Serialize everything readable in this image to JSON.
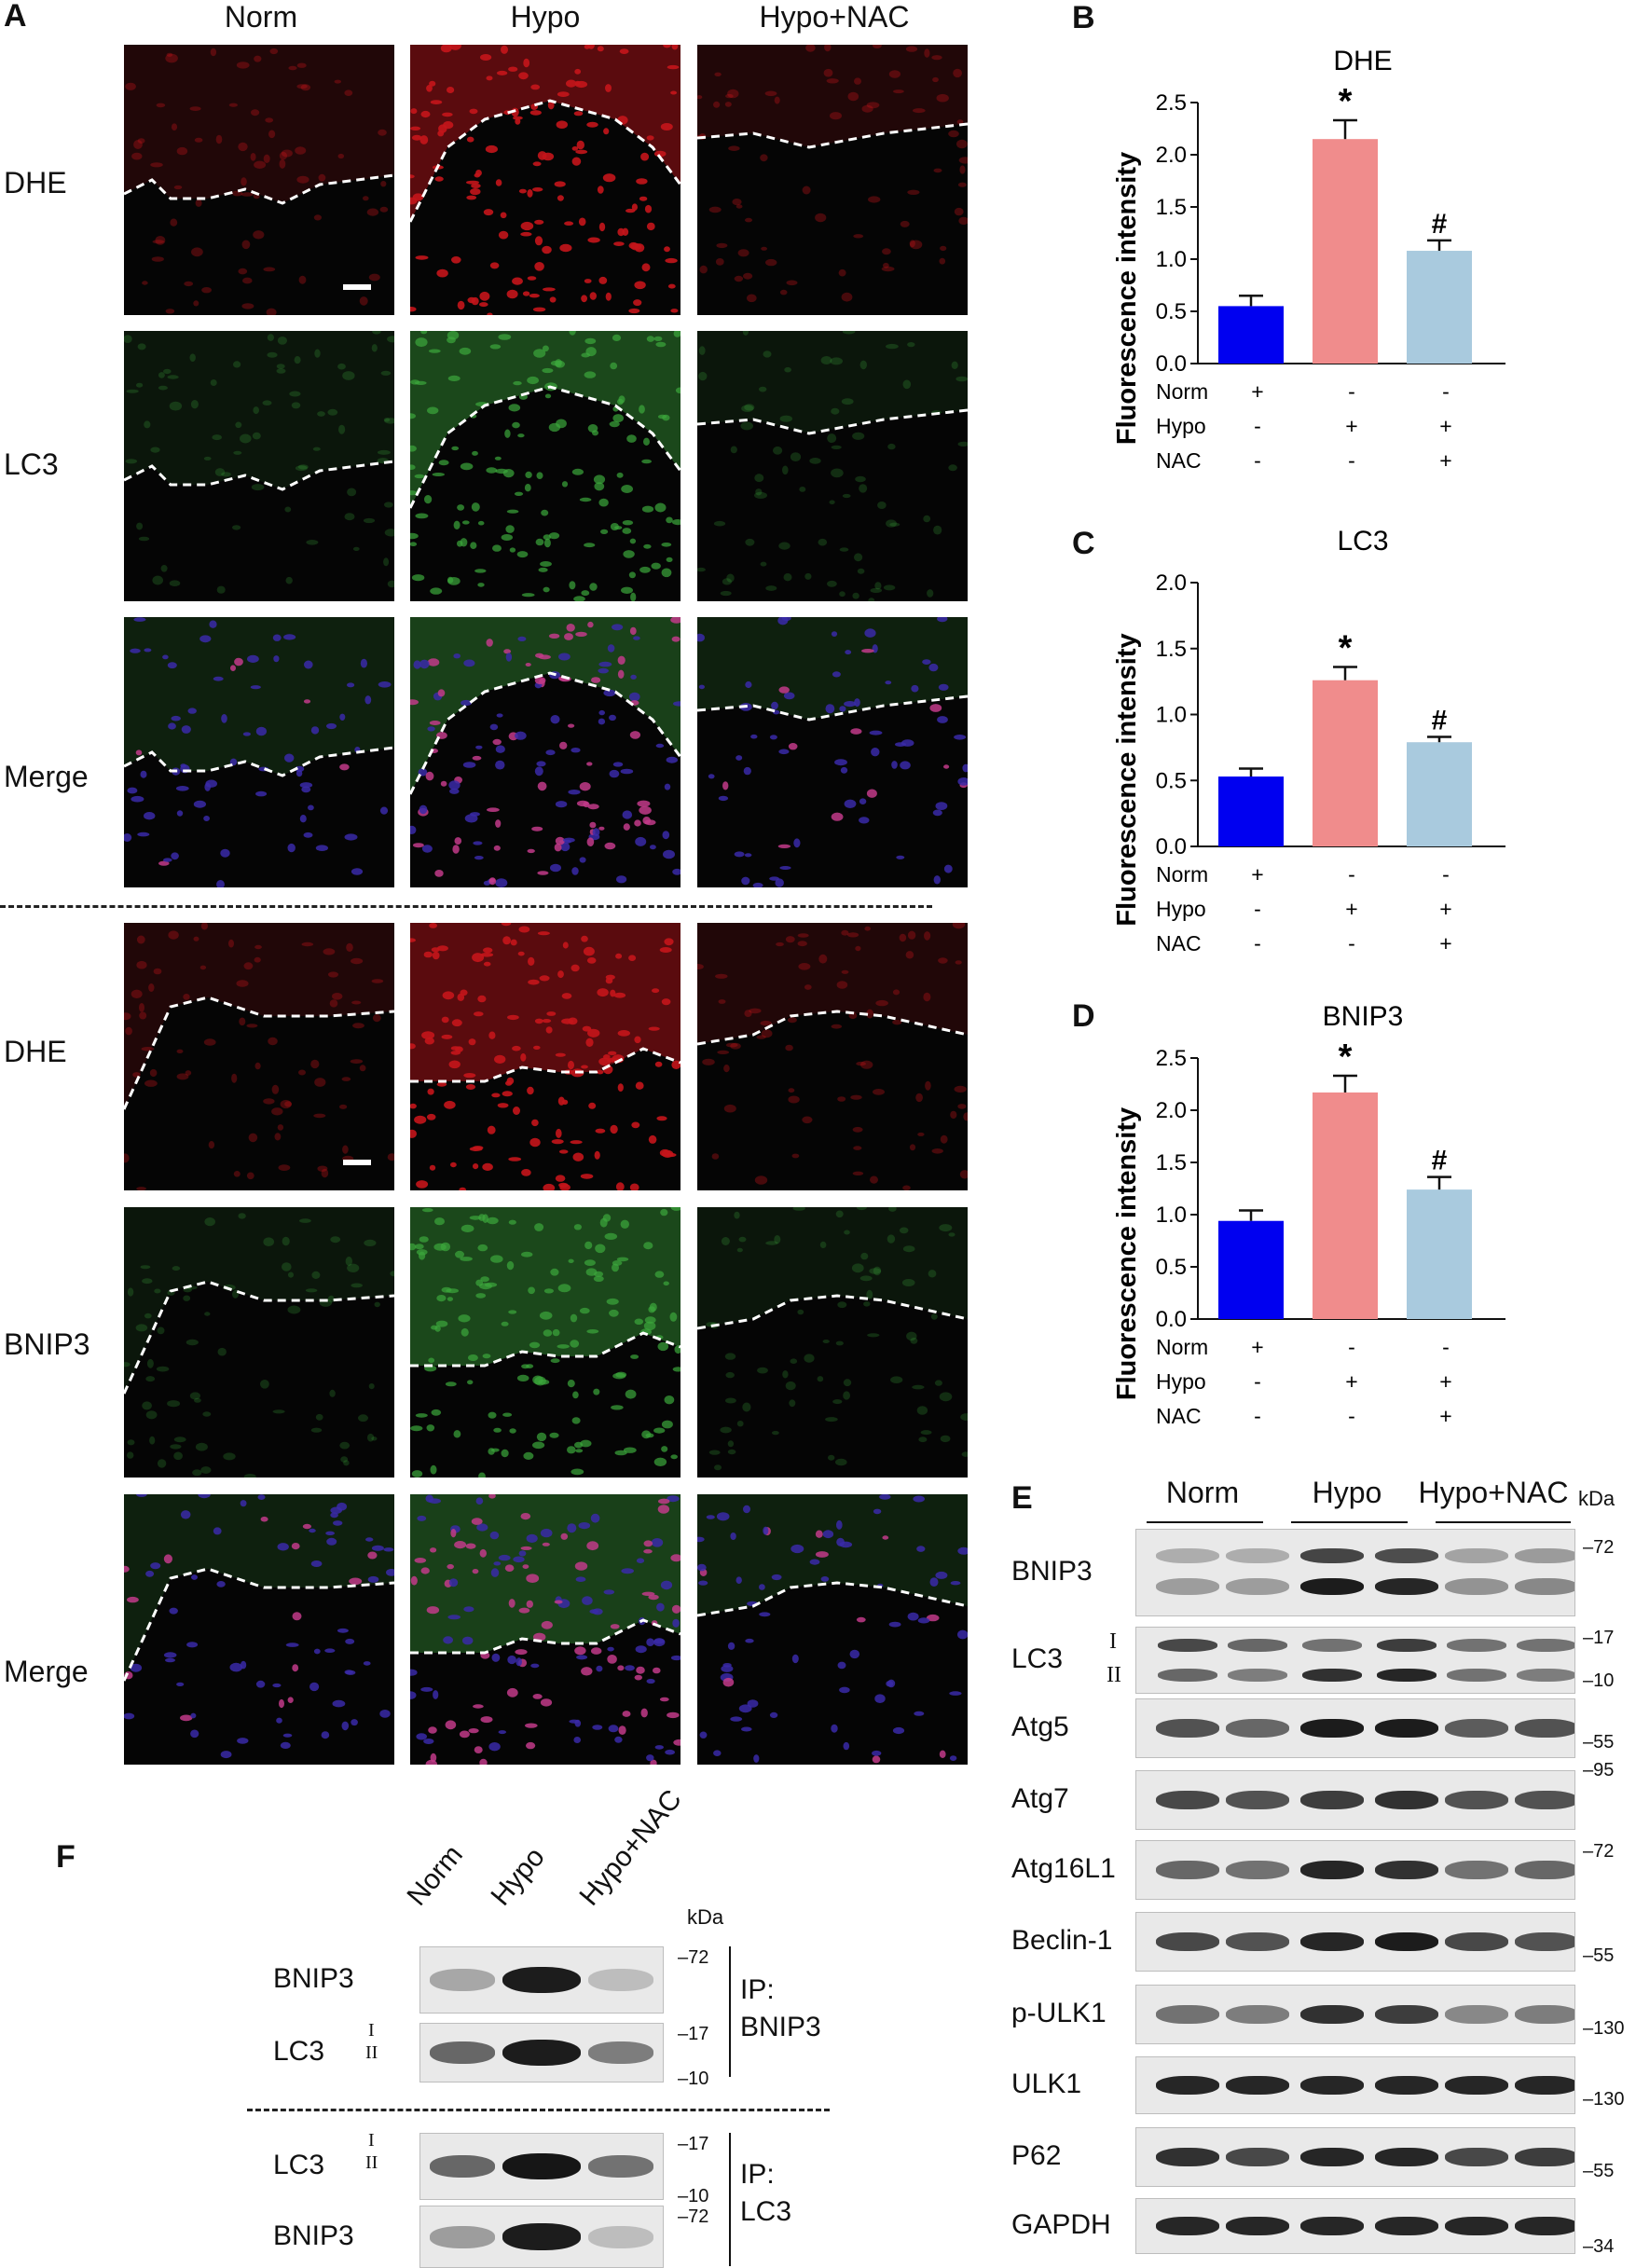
{
  "panel_letters": {
    "A": "A",
    "B": "B",
    "C": "C",
    "D": "D",
    "E": "E",
    "F": "F"
  },
  "panel_a": {
    "columns": [
      "Norm",
      "Hypo",
      "Hypo+NAC"
    ],
    "top_rows": [
      "DHE",
      "LC3",
      "Merge"
    ],
    "bottom_rows": [
      "DHE",
      "BNIP3",
      "Merge"
    ],
    "colors": {
      "dhe": "#c4151b",
      "green": "#3ca83c",
      "nucleus": "#3a2aa8",
      "background": "#050505"
    }
  },
  "chart_data": [
    {
      "type": "bar",
      "title": "DHE",
      "ylabel": "Fluorescence intensity",
      "ylim": [
        0,
        2.5
      ],
      "yticks": [
        "0.0",
        "0.5",
        "1.0",
        "1.5",
        "2.0",
        "2.5"
      ],
      "values": [
        0.55,
        2.15,
        1.08
      ],
      "errors": [
        0.1,
        0.18,
        0.1
      ],
      "colors": [
        "#0000f0",
        "#f08c8c",
        "#a9cade"
      ],
      "markers": [
        "",
        "*",
        "#"
      ],
      "conditions": [
        {
          "name": "Norm",
          "signs": [
            "+",
            "-",
            "-"
          ]
        },
        {
          "name": "Hypo",
          "signs": [
            "-",
            "+",
            "+"
          ]
        },
        {
          "name": "NAC",
          "signs": [
            "-",
            "-",
            "+"
          ]
        }
      ]
    },
    {
      "type": "bar",
      "title": "LC3",
      "ylabel": "Fluorescence intensity",
      "ylim": [
        0,
        2.0
      ],
      "yticks": [
        "0.0",
        "0.5",
        "1.0",
        "1.5",
        "2.0"
      ],
      "values": [
        0.53,
        1.26,
        0.79
      ],
      "errors": [
        0.06,
        0.1,
        0.04
      ],
      "colors": [
        "#0000f0",
        "#f08c8c",
        "#a9cade"
      ],
      "markers": [
        "",
        "*",
        "#"
      ],
      "conditions": [
        {
          "name": "Norm",
          "signs": [
            "+",
            "-",
            "-"
          ]
        },
        {
          "name": "Hypo",
          "signs": [
            "-",
            "+",
            "+"
          ]
        },
        {
          "name": "NAC",
          "signs": [
            "-",
            "-",
            "+"
          ]
        }
      ]
    },
    {
      "type": "bar",
      "title": "BNIP3",
      "ylabel": "Fluorescence intensity",
      "ylim": [
        0,
        2.5
      ],
      "yticks": [
        "0.0",
        "0.5",
        "1.0",
        "1.5",
        "2.0",
        "2.5"
      ],
      "values": [
        0.94,
        2.17,
        1.24
      ],
      "errors": [
        0.1,
        0.16,
        0.12
      ],
      "colors": [
        "#0000f0",
        "#f08c8c",
        "#a9cade"
      ],
      "markers": [
        "",
        "*",
        "#"
      ],
      "conditions": [
        {
          "name": "Norm",
          "signs": [
            "+",
            "-",
            "-"
          ]
        },
        {
          "name": "Hypo",
          "signs": [
            "-",
            "+",
            "+"
          ]
        },
        {
          "name": "NAC",
          "signs": [
            "-",
            "-",
            "+"
          ]
        }
      ]
    }
  ],
  "panel_e": {
    "groups": [
      "Norm",
      "Hypo",
      "Hypo+NAC"
    ],
    "kda": "kDa",
    "rows": [
      {
        "label": "BNIP3",
        "markers": [
          "72"
        ]
      },
      {
        "label": "LC3",
        "roman": [
          "I",
          "II"
        ],
        "markers": [
          "17",
          "10"
        ]
      },
      {
        "label": "Atg5",
        "markers": [
          "55"
        ]
      },
      {
        "label": "Atg7",
        "markers": [
          "95"
        ]
      },
      {
        "label": "Atg16L1",
        "markers": [
          "72"
        ]
      },
      {
        "label": "Beclin-1",
        "markers": [
          "55"
        ]
      },
      {
        "label": "p-ULK1",
        "markers": [
          "130"
        ]
      },
      {
        "label": "ULK1",
        "markers": [
          "130"
        ]
      },
      {
        "label": "P62",
        "markers": [
          "55"
        ]
      },
      {
        "label": "GAPDH",
        "markers": [
          "34"
        ]
      }
    ]
  },
  "panel_f": {
    "columns": [
      "Norm",
      "Hypo",
      "Hypo+NAC"
    ],
    "kda": "kDa",
    "ip_top": [
      "IP:",
      "BNIP3"
    ],
    "ip_bottom": [
      "IP:",
      "LC3"
    ],
    "rows_top": [
      {
        "label": "BNIP3",
        "markers": [
          "72"
        ]
      },
      {
        "label": "LC3",
        "roman": [
          "I",
          "II"
        ],
        "markers": [
          "17",
          "10"
        ]
      }
    ],
    "rows_bottom": [
      {
        "label": "LC3",
        "roman": [
          "I",
          "II"
        ],
        "markers": [
          "17",
          "10"
        ]
      },
      {
        "label": "BNIP3",
        "markers": [
          "72"
        ]
      }
    ]
  }
}
